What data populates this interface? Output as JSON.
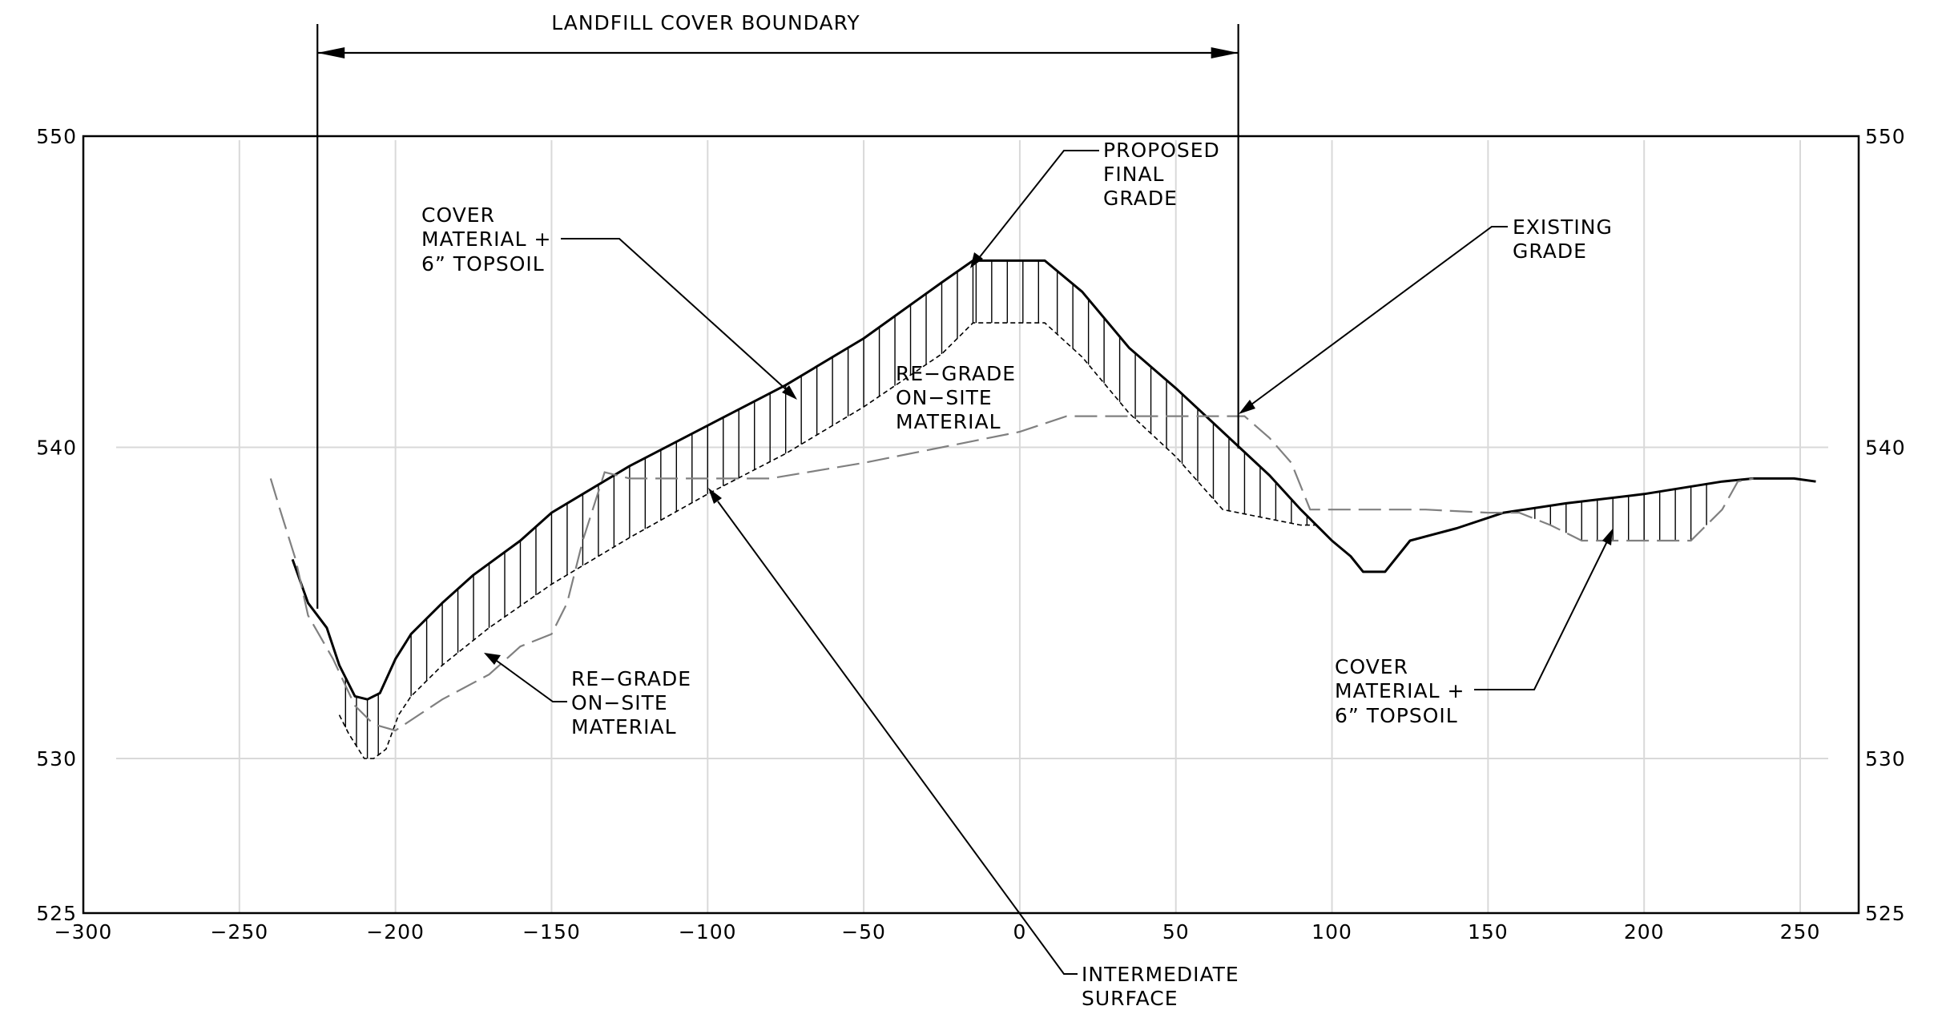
{
  "chart_data": {
    "type": "line",
    "title": "",
    "xlabel": "",
    "ylabel": "",
    "xlim": [
      -300,
      260
    ],
    "ylim": [
      525,
      550
    ],
    "x_ticks": [
      -300,
      -250,
      -200,
      -150,
      -100,
      -50,
      0,
      50,
      100,
      150,
      200,
      250
    ],
    "y_ticks": [
      525,
      530,
      540,
      550
    ],
    "grid_x": [
      -250,
      -200,
      -150,
      -100,
      -50,
      0,
      50,
      100,
      150,
      200,
      250
    ],
    "grid_y": [
      530,
      540
    ],
    "series": [
      {
        "key": "final",
        "points": [
          [
            -233,
            536.4
          ],
          [
            -228,
            535
          ],
          [
            -222,
            534.2
          ],
          [
            -218,
            533
          ],
          [
            -213,
            532
          ],
          [
            -209,
            531.9
          ],
          [
            -205,
            532.1
          ],
          [
            -200,
            533.2
          ],
          [
            -195,
            534
          ],
          [
            -185,
            535
          ],
          [
            -175,
            535.9
          ],
          [
            -160,
            537
          ],
          [
            -150,
            537.9
          ],
          [
            -140,
            538.5
          ],
          [
            -125,
            539.4
          ],
          [
            -100,
            540.7
          ],
          [
            -75,
            542
          ],
          [
            -50,
            543.5
          ],
          [
            -25,
            545.3
          ],
          [
            -15,
            546
          ],
          [
            8,
            546
          ],
          [
            20,
            545
          ],
          [
            35,
            543.2
          ],
          [
            50,
            541.9
          ],
          [
            65,
            540.5
          ],
          [
            80,
            539.1
          ],
          [
            90,
            538
          ],
          [
            100,
            537
          ],
          [
            106,
            536.5
          ],
          [
            110,
            536
          ],
          [
            117,
            536
          ],
          [
            125,
            537
          ],
          [
            140,
            537.4
          ],
          [
            155,
            537.9
          ],
          [
            175,
            538.2
          ],
          [
            200,
            538.5
          ],
          [
            225,
            538.9
          ],
          [
            235,
            539
          ],
          [
            248,
            539
          ],
          [
            255,
            538.9
          ]
        ]
      },
      {
        "key": "intermediate",
        "points": [
          [
            -218,
            531.4
          ],
          [
            -215,
            530.8
          ],
          [
            -210,
            530
          ],
          [
            -207,
            530
          ],
          [
            -203,
            530.3
          ],
          [
            -199,
            531.4
          ],
          [
            -195,
            532
          ],
          [
            -185,
            533
          ],
          [
            -170,
            534.2
          ],
          [
            -150,
            535.6
          ],
          [
            -125,
            537.1
          ],
          [
            -100,
            538.5
          ],
          [
            -75,
            539.8
          ],
          [
            -50,
            541.3
          ],
          [
            -25,
            543
          ],
          [
            -15,
            544
          ],
          [
            8,
            544
          ],
          [
            20,
            542.9
          ],
          [
            35,
            541.1
          ],
          [
            50,
            539.7
          ],
          [
            65,
            538
          ],
          [
            75,
            537.8
          ],
          [
            90,
            537.5
          ],
          [
            95,
            537.5
          ],
          [
            100,
            537
          ]
        ]
      },
      {
        "key": "existing",
        "points": [
          [
            -240,
            539
          ],
          [
            -237,
            538
          ],
          [
            -232,
            536.4
          ],
          [
            -228,
            534.6
          ],
          [
            -220,
            533.2
          ],
          [
            -213,
            531.7
          ],
          [
            -207,
            531.1
          ],
          [
            -200,
            530.9
          ],
          [
            -185,
            531.9
          ],
          [
            -170,
            532.7
          ],
          [
            -160,
            533.6
          ],
          [
            -150,
            534
          ],
          [
            -145,
            535
          ],
          [
            -140,
            537
          ],
          [
            -133,
            539.2
          ],
          [
            -125,
            539
          ],
          [
            -100,
            539
          ],
          [
            -80,
            539
          ],
          [
            -50,
            539.5
          ],
          [
            -25,
            540
          ],
          [
            0,
            540.5
          ],
          [
            15,
            541
          ],
          [
            35,
            541
          ],
          [
            60,
            541
          ],
          [
            72,
            541
          ],
          [
            80,
            540.3
          ],
          [
            87,
            539.5
          ],
          [
            93,
            538
          ],
          [
            100,
            538
          ],
          [
            130,
            538
          ],
          [
            150,
            537.9
          ],
          [
            160,
            537.9
          ],
          [
            170,
            537.5
          ],
          [
            180,
            537
          ],
          [
            195,
            537
          ],
          [
            215,
            537
          ],
          [
            225,
            538
          ],
          [
            230,
            538.9
          ],
          [
            235,
            539
          ]
        ]
      }
    ],
    "hatch_regions": [
      {
        "from": -216,
        "to": -203,
        "step": 3.5
      },
      {
        "from": -195,
        "to": -14,
        "step": 5
      },
      {
        "from": -14,
        "to": 8,
        "step": 5
      },
      {
        "from": 12,
        "to": 98,
        "step": 5
      },
      {
        "from": 160,
        "to": 222,
        "step": 5
      }
    ],
    "boundary": {
      "label": "LANDFILL COVER BOUNDARY",
      "x_left": -225,
      "x_right": 70
    }
  },
  "annotations": {
    "proposed_final_grade": [
      "PROPOSED",
      "FINAL",
      "GRADE"
    ],
    "existing_grade": [
      "EXISTING",
      "GRADE"
    ],
    "cover_left": [
      "COVER",
      "MATERIAL +",
      "6” TOPSOIL"
    ],
    "cover_right": [
      "COVER",
      "MATERIAL +",
      "6” TOPSOIL"
    ],
    "regrade_upper": [
      "RE−GRADE",
      "ON−SITE",
      "MATERIAL"
    ],
    "regrade_lower": [
      "RE−GRADE",
      "ON−SITE",
      "MATERIAL"
    ],
    "intermediate_surface": [
      "INTERMEDIATE",
      "SURFACE"
    ]
  }
}
